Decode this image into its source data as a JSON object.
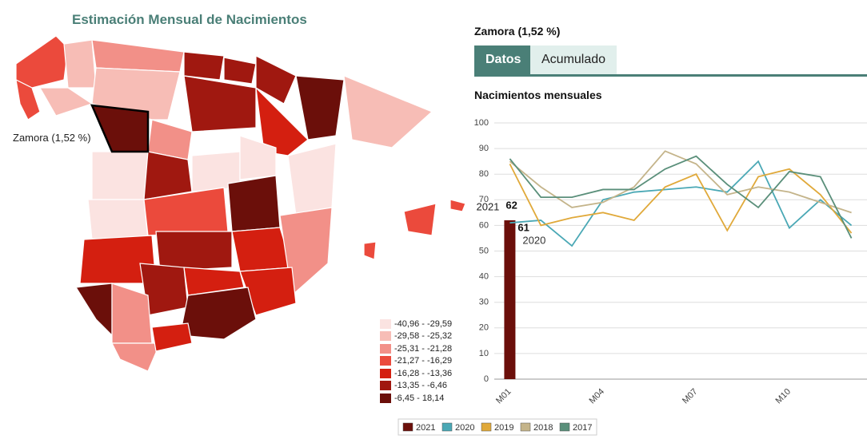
{
  "map": {
    "title": "Estimación Mensual de Nacimientos",
    "hover_label": "Zamora (1,52 %)",
    "legend": [
      {
        "label": "-40,96 - -29,59",
        "color": "#fbe3e1"
      },
      {
        "label": "-29,58 - -25,32",
        "color": "#f7bdb6"
      },
      {
        "label": "-25,31 - -21,28",
        "color": "#f29088"
      },
      {
        "label": "-21,27 - -16,29",
        "color": "#eb4a3c"
      },
      {
        "label": "-16,28 - -13,36",
        "color": "#d41f10"
      },
      {
        "label": "-13,35 - -6,46",
        "color": "#a01810"
      },
      {
        "label": "-6,45 - 18,14",
        "color": "#6b0f0a"
      }
    ]
  },
  "tabs": [
    "Datos",
    "Acumulado"
  ],
  "chart_data": {
    "type": "line",
    "title": "Zamora (1,52 %)",
    "subtitle": "Nacimientos mensuales",
    "categories": [
      "M01",
      null,
      null,
      "M04",
      null,
      null,
      "M07",
      null,
      null,
      "M10",
      null,
      null
    ],
    "ylim": [
      0,
      100
    ],
    "yticks": [
      0,
      10,
      20,
      30,
      40,
      50,
      60,
      70,
      80,
      90,
      100
    ],
    "grid": true,
    "legend": "bottom",
    "series": [
      {
        "name": "2021",
        "color": "#6b0f0a",
        "type": "bar",
        "values": [
          62,
          null,
          null,
          null,
          null,
          null,
          null,
          null,
          null,
          null,
          null,
          null
        ]
      },
      {
        "name": "2020",
        "color": "#4aa8b5",
        "values": [
          61,
          62,
          52,
          70,
          73,
          74,
          75,
          73,
          85,
          59,
          70,
          60
        ]
      },
      {
        "name": "2019",
        "color": "#e0a93a",
        "values": [
          84,
          60,
          63,
          65,
          62,
          75,
          80,
          58,
          79,
          82,
          72,
          57
        ]
      },
      {
        "name": "2018",
        "color": "#c4b48a",
        "values": [
          85,
          75,
          67,
          69,
          75,
          89,
          84,
          72,
          75,
          73,
          69,
          65
        ]
      },
      {
        "name": "2017",
        "color": "#5a8f7a",
        "values": [
          86,
          71,
          71,
          74,
          74,
          82,
          87,
          76,
          67,
          81,
          79,
          55
        ]
      }
    ]
  }
}
